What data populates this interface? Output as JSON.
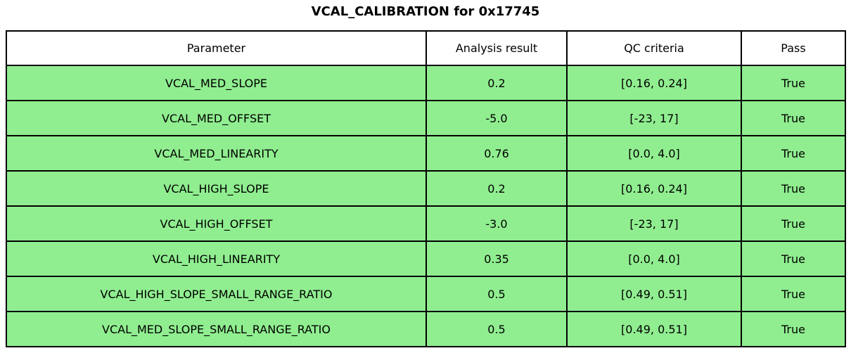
{
  "chart_data": {
    "type": "table",
    "title": "VCAL_CALIBRATION for 0x17745",
    "columns": [
      "Parameter",
      "Analysis result",
      "QC criteria",
      "Pass"
    ],
    "rows": [
      [
        "VCAL_MED_SLOPE",
        "0.2",
        "[0.16, 0.24]",
        "True"
      ],
      [
        "VCAL_MED_OFFSET",
        "-5.0",
        "[-23, 17]",
        "True"
      ],
      [
        "VCAL_MED_LINEARITY",
        "0.76",
        "[0.0, 4.0]",
        "True"
      ],
      [
        "VCAL_HIGH_SLOPE",
        "0.2",
        "[0.16, 0.24]",
        "True"
      ],
      [
        "VCAL_HIGH_OFFSET",
        "-3.0",
        "[-23, 17]",
        "True"
      ],
      [
        "VCAL_HIGH_LINEARITY",
        "0.35",
        "[0.0, 4.0]",
        "True"
      ],
      [
        "VCAL_HIGH_SLOPE_SMALL_RANGE_RATIO",
        "0.5",
        "[0.49, 0.51]",
        "True"
      ],
      [
        "VCAL_MED_SLOPE_SMALL_RANGE_RATIO",
        "0.5",
        "[0.49, 0.51]",
        "True"
      ]
    ],
    "colors": {
      "row_background": "#90EE90",
      "header_background": "#FFFFFF",
      "border": "#000000",
      "text": "#000000"
    },
    "layout_hints": {
      "all_rows_pass": true,
      "grid": true
    }
  }
}
